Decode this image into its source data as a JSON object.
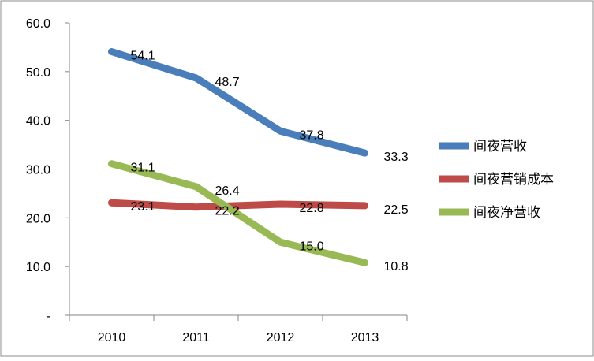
{
  "chart_data": {
    "type": "line",
    "categories": [
      "2010",
      "2011",
      "2012",
      "2013"
    ],
    "y_ticks": [
      "-",
      "10.0",
      "20.0",
      "30.0",
      "40.0",
      "50.0",
      "60.0"
    ],
    "ylim": [
      0,
      60
    ],
    "grid": false,
    "legend_position": "right",
    "series": [
      {
        "name": "间夜营收",
        "color": "#4a7ebb",
        "values": [
          54.1,
          48.7,
          37.8,
          33.3
        ],
        "labels": [
          "54.1",
          "48.7",
          "37.8",
          "33.3"
        ]
      },
      {
        "name": "间夜营销成本",
        "color": "#be4b48",
        "values": [
          23.1,
          22.2,
          22.8,
          22.5
        ],
        "labels": [
          "23.1",
          "22.2",
          "22.8",
          "22.5"
        ]
      },
      {
        "name": "间夜净营收",
        "color": "#98b954",
        "values": [
          31.1,
          26.4,
          15.0,
          10.8
        ],
        "labels": [
          "31.1",
          "26.4",
          "15.0",
          "10.8"
        ]
      }
    ]
  }
}
